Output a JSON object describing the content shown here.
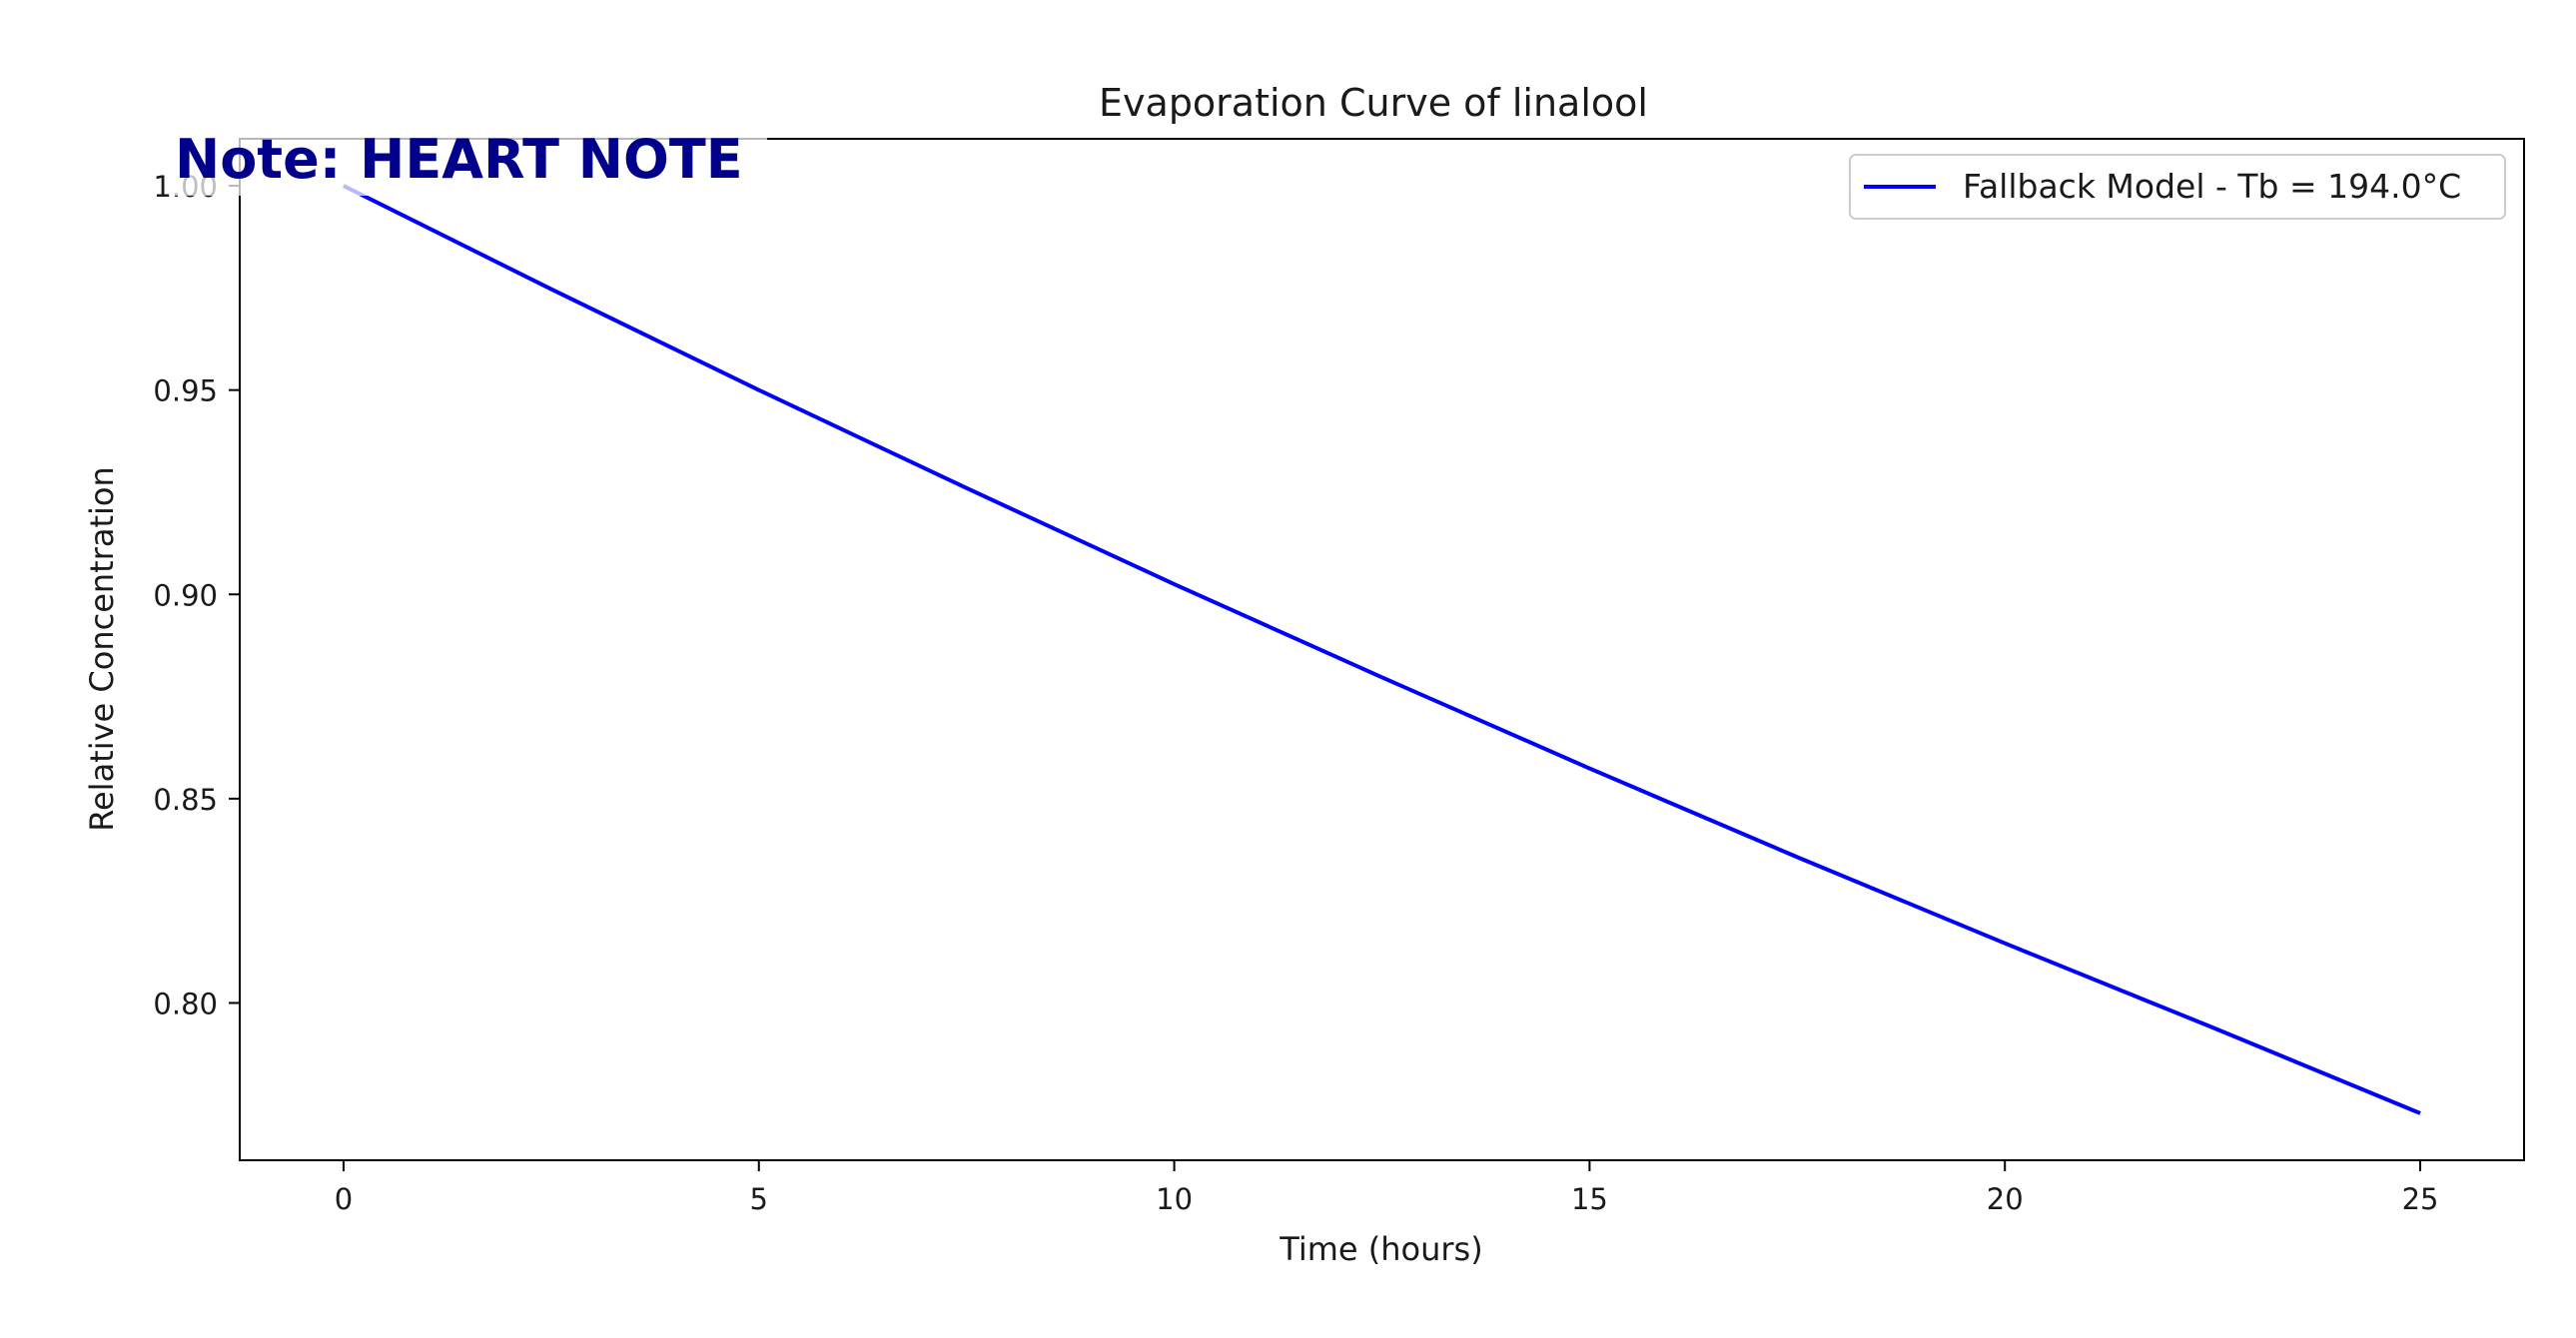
{
  "note": {
    "text": "Note: HEART NOTE",
    "color": "#00008b"
  },
  "chart_data": {
    "type": "line",
    "title": "Evaporation Curve of linalool",
    "xlabel": "Time (hours)",
    "ylabel": "Relative Concentration",
    "xlim": [
      -1.25,
      26.25
    ],
    "ylim": [
      0.7615,
      1.0115
    ],
    "x_ticks": [
      0,
      5,
      10,
      15,
      20,
      25
    ],
    "y_ticks": [
      0.8,
      0.85,
      0.9,
      0.95,
      1.0
    ],
    "x_tick_labels": [
      "0",
      "5",
      "10",
      "15",
      "20",
      "25"
    ],
    "y_tick_labels": [
      "0.80",
      "0.85",
      "0.90",
      "0.95",
      "1.00"
    ],
    "grid": false,
    "legend_position": "top-right",
    "series": [
      {
        "name": "Fallback Model - Tb = 194.0°C",
        "color": "#0000ff",
        "x": [
          0,
          2.5,
          5,
          7.5,
          10,
          12.5,
          15,
          17.5,
          20,
          22.5,
          25
        ],
        "y": [
          1.0,
          0.9747,
          0.95,
          0.926,
          0.9025,
          0.8797,
          0.8574,
          0.8357,
          0.8146,
          0.794,
          0.773
        ]
      }
    ]
  }
}
